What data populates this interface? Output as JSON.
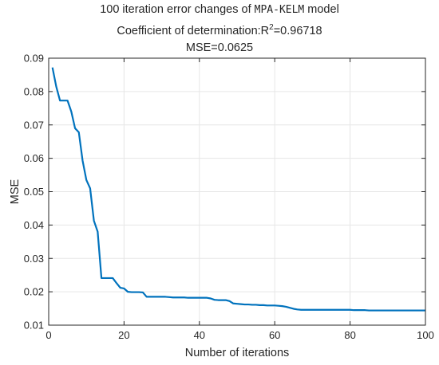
{
  "title": {
    "line1_prefix": "100 iteration error changes of ",
    "line1_model": "MPA-KELM",
    "line1_suffix": " model",
    "line2_prefix": "Coefficient of determination:R",
    "line2_sup": "2",
    "line2_suffix": "=0.96718",
    "line3": "MSE=0.0625"
  },
  "colors": {
    "line": "#0072BD",
    "axis": "#262626",
    "grid": "#e6e6e6"
  },
  "chart_data": {
    "type": "line",
    "xlabel": "Number of iterations",
    "ylabel": "MSE",
    "xlim": [
      0,
      100
    ],
    "ylim": [
      0.01,
      0.09
    ],
    "xticks": [
      0,
      20,
      40,
      60,
      80,
      100
    ],
    "yticks": [
      0.01,
      0.02,
      0.03,
      0.04,
      0.05,
      0.06,
      0.07,
      0.08,
      0.09
    ],
    "ytick_labels": [
      "0.01",
      "0.02",
      "0.03",
      "0.04",
      "0.05",
      "0.06",
      "0.07",
      "0.08",
      "0.09"
    ],
    "grid": true,
    "series": [
      {
        "x": [
          1,
          2,
          3,
          4,
          5,
          6,
          7,
          8,
          9,
          10,
          11,
          12,
          13,
          14,
          15,
          16,
          17,
          18,
          19,
          20,
          21,
          22,
          23,
          24,
          25,
          26,
          27,
          28,
          29,
          30,
          31,
          32,
          33,
          34,
          35,
          36,
          37,
          38,
          39,
          40,
          41,
          42,
          43,
          44,
          45,
          46,
          47,
          48,
          49,
          50,
          51,
          52,
          53,
          54,
          55,
          56,
          57,
          58,
          59,
          60,
          61,
          62,
          63,
          64,
          65,
          66,
          67,
          68,
          69,
          70,
          71,
          72,
          73,
          74,
          75,
          76,
          77,
          78,
          79,
          80,
          81,
          82,
          83,
          84,
          85,
          86,
          87,
          88,
          89,
          90,
          91,
          92,
          93,
          94,
          95,
          96,
          97,
          98,
          99,
          100
        ],
        "y": [
          0.0872,
          0.0815,
          0.0773,
          0.0773,
          0.0773,
          0.074,
          0.069,
          0.0678,
          0.0593,
          0.0535,
          0.051,
          0.0413,
          0.038,
          0.0241,
          0.0241,
          0.0241,
          0.0241,
          0.0226,
          0.0212,
          0.021,
          0.02,
          0.0199,
          0.0199,
          0.0199,
          0.0198,
          0.0185,
          0.0185,
          0.0185,
          0.0185,
          0.0185,
          0.0185,
          0.0184,
          0.0183,
          0.0183,
          0.0183,
          0.0183,
          0.0182,
          0.0182,
          0.0182,
          0.0182,
          0.0182,
          0.0182,
          0.018,
          0.0176,
          0.0175,
          0.0175,
          0.0175,
          0.0172,
          0.0165,
          0.0164,
          0.0163,
          0.0162,
          0.0162,
          0.0161,
          0.0161,
          0.016,
          0.016,
          0.0159,
          0.0159,
          0.0159,
          0.0158,
          0.0157,
          0.0155,
          0.0152,
          0.0149,
          0.0147,
          0.0146,
          0.0146,
          0.0146,
          0.0146,
          0.0146,
          0.0146,
          0.0146,
          0.0146,
          0.0146,
          0.0146,
          0.0146,
          0.0146,
          0.0146,
          0.0146,
          0.0145,
          0.0145,
          0.0145,
          0.0145,
          0.0144,
          0.0144,
          0.0144,
          0.0144,
          0.0144,
          0.0144,
          0.0144,
          0.0144,
          0.0144,
          0.0144,
          0.0144,
          0.0144,
          0.0144,
          0.0144,
          0.0144,
          0.0144
        ]
      }
    ]
  }
}
